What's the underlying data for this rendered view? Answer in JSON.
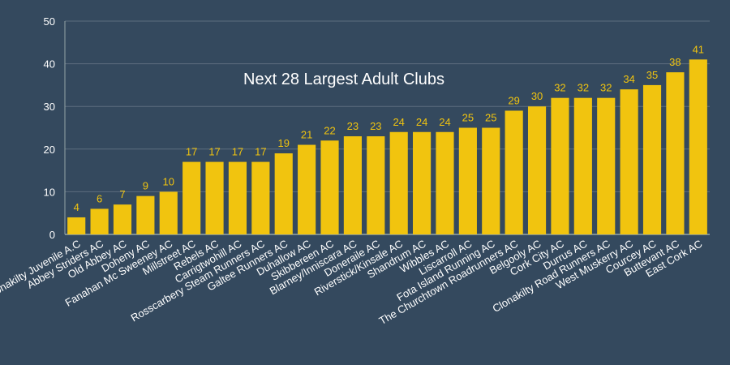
{
  "colors": {
    "background": "#34495e",
    "bar": "#f1c40f",
    "data_label": "#f1c40f",
    "grid": "#5d6d7e",
    "axis": "#95a5a6",
    "text": "#ffffff"
  },
  "chart_data": {
    "type": "bar",
    "title": "Next 28 Largest Adult Clubs",
    "xlabel": "",
    "ylabel": "",
    "ylim": [
      0,
      50
    ],
    "yticks": [
      0,
      10,
      20,
      30,
      40,
      50
    ],
    "grid": true,
    "legend": "none",
    "categories": [
      "Clonakilty Juvenile A.C",
      "Abbey Striders AC",
      "Old Abbey AC",
      "Doheny AC",
      "Fanahan Mc Sweeney AC",
      "Millstreet AC",
      "Rebels AC",
      "Carrigtwohill AC",
      "Rosscarbery Steam Runners AC",
      "Galtee Runners AC",
      "Duhallow AC",
      "Skibbereen AC",
      "Blarney/Inniscara AC",
      "Doneraile AC",
      "Riverstick/Kinsale AC",
      "Shandrum AC",
      "Wibbles AC",
      "Liscarroll AC",
      "Fota Island Running AC",
      "The Churchtown Roadrunners AC",
      "Belgooly AC",
      "Cork City AC",
      "Durrus AC",
      "Clonakilty Road Runners AC",
      "West Muskerry AC",
      "Courcey AC",
      "Buttevant AC",
      "East Cork AC"
    ],
    "values": [
      4,
      6,
      7,
      9,
      10,
      17,
      17,
      17,
      17,
      19,
      21,
      22,
      23,
      23,
      24,
      24,
      24,
      25,
      25,
      29,
      30,
      32,
      32,
      32,
      34,
      35,
      38,
      41
    ]
  }
}
